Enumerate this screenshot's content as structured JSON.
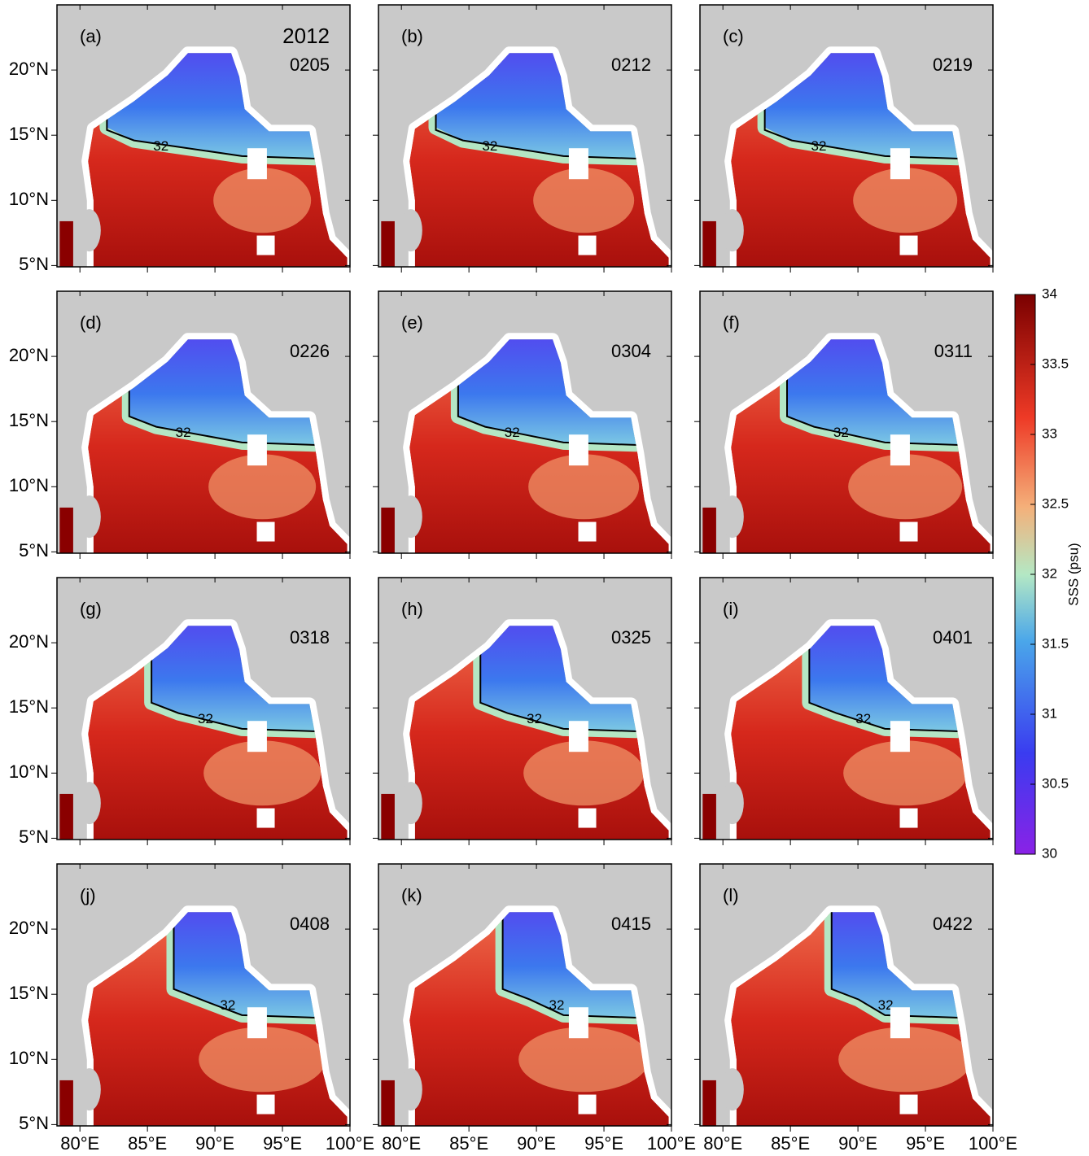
{
  "figure": {
    "year": "2012",
    "contour_label": "32",
    "panels": [
      {
        "label": "(a)",
        "date": "0205"
      },
      {
        "label": "(b)",
        "date": "0212"
      },
      {
        "label": "(c)",
        "date": "0219"
      },
      {
        "label": "(d)",
        "date": "0226"
      },
      {
        "label": "(e)",
        "date": "0304"
      },
      {
        "label": "(f)",
        "date": "0311"
      },
      {
        "label": "(g)",
        "date": "0318"
      },
      {
        "label": "(h)",
        "date": "0325"
      },
      {
        "label": "(i)",
        "date": "0401"
      },
      {
        "label": "(j)",
        "date": "0408"
      },
      {
        "label": "(k)",
        "date": "0415"
      },
      {
        "label": "(l)",
        "date": "0422"
      }
    ],
    "xlim": [
      78.3,
      100
    ],
    "xticks": [
      {
        "value": 80,
        "label": "80°E"
      },
      {
        "value": 85,
        "label": "85°E"
      },
      {
        "value": 90,
        "label": "90°E"
      },
      {
        "value": 95,
        "label": "95°E"
      },
      {
        "value": 100,
        "label": "100°E"
      }
    ],
    "ylim": [
      4.9,
      25
    ],
    "yticks": [
      {
        "value": 5,
        "label": "5°N"
      },
      {
        "value": 10,
        "label": "10°N"
      },
      {
        "value": 15,
        "label": "15°N"
      },
      {
        "value": 20,
        "label": "20°N"
      }
    ],
    "colorbar": {
      "label": "SSS (psu)",
      "lim": [
        30,
        34
      ],
      "ticks": [
        30,
        30.5,
        31,
        31.5,
        32,
        32.5,
        33,
        33.5,
        34
      ]
    }
  }
}
